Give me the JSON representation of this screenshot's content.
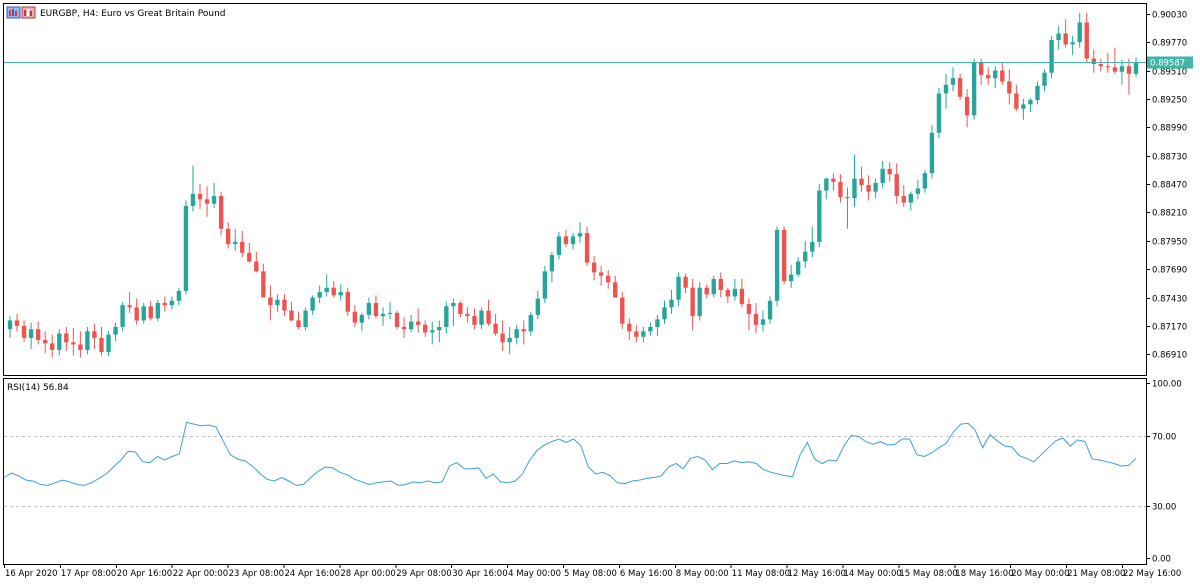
{
  "window": {
    "title": "EURGBP, H4:  Euro vs Great Britain Pound",
    "icon": "chart-window-icon"
  },
  "colors": {
    "bull": "#26a69a",
    "bear": "#ef5350",
    "price_line": "#3fb6a8",
    "rsi": "#3a9ee4",
    "price_label_bg": "#3fb6a8"
  },
  "price_label": "0.89587",
  "rsi_title": "RSI(14) 56.84",
  "chart_data": [
    {
      "type": "candlestick",
      "title": "EURGBP, H4:  Euro vs Great Britain Pound",
      "ylim": [
        0.8672,
        0.9012
      ],
      "yticks": [
        "0.90030",
        "0.89770",
        "0.89510",
        "0.89250",
        "0.88990",
        "0.88730",
        "0.88470",
        "0.88210",
        "0.87950",
        "0.87690",
        "0.87430",
        "0.87170",
        "0.86910"
      ],
      "current_price": 0.89587,
      "x_labels": [
        "16 Apr 2020",
        "17 Apr 08:00",
        "20 Apr 16:00",
        "22 Apr 00:00",
        "23 Apr 08:00",
        "24 Apr 16:00",
        "28 Apr 00:00",
        "29 Apr 08:00",
        "30 Apr 16:00",
        "4 May 00:00",
        "5 May 08:00",
        "6 May 16:00",
        "8 May 00:00",
        "11 May 08:00",
        "12 May 16:00",
        "14 May 00:00",
        "15 May 08:00",
        "18 May 16:00",
        "20 May 00:00",
        "21 May 08:00",
        "22 May 16:00"
      ],
      "ohlc": [
        [
          0.8714,
          0.8726,
          0.8706,
          0.8722
        ],
        [
          0.8722,
          0.8728,
          0.8712,
          0.8717
        ],
        [
          0.8717,
          0.8722,
          0.8702,
          0.8706
        ],
        [
          0.8706,
          0.872,
          0.8696,
          0.8714
        ],
        [
          0.8714,
          0.8721,
          0.87,
          0.8704
        ],
        [
          0.8704,
          0.8712,
          0.8692,
          0.8701
        ],
        [
          0.8701,
          0.8709,
          0.8688,
          0.8695
        ],
        [
          0.8695,
          0.8714,
          0.869,
          0.871
        ],
        [
          0.871,
          0.8716,
          0.8694,
          0.8702
        ],
        [
          0.8702,
          0.8715,
          0.869,
          0.87
        ],
        [
          0.87,
          0.8712,
          0.8688,
          0.8695
        ],
        [
          0.8695,
          0.8716,
          0.8691,
          0.8712
        ],
        [
          0.8712,
          0.8719,
          0.8696,
          0.8706
        ],
        [
          0.8706,
          0.8716,
          0.869,
          0.8693
        ],
        [
          0.8693,
          0.8712,
          0.8689,
          0.8709
        ],
        [
          0.8709,
          0.872,
          0.8703,
          0.8716
        ],
        [
          0.8716,
          0.8739,
          0.8712,
          0.8736
        ],
        [
          0.8736,
          0.8748,
          0.8729,
          0.8734
        ],
        [
          0.8734,
          0.8742,
          0.8718,
          0.8722
        ],
        [
          0.8722,
          0.8738,
          0.8719,
          0.8735
        ],
        [
          0.8735,
          0.874,
          0.8722,
          0.8724
        ],
        [
          0.8724,
          0.8741,
          0.8721,
          0.8738
        ],
        [
          0.8738,
          0.8744,
          0.873,
          0.8736
        ],
        [
          0.8736,
          0.8744,
          0.8732,
          0.874
        ],
        [
          0.874,
          0.8752,
          0.8736,
          0.8749
        ],
        [
          0.8749,
          0.8832,
          0.8746,
          0.8827
        ],
        [
          0.8827,
          0.8864,
          0.8822,
          0.8838
        ],
        [
          0.8838,
          0.8847,
          0.8824,
          0.8833
        ],
        [
          0.8833,
          0.8845,
          0.8817,
          0.8829
        ],
        [
          0.8829,
          0.8848,
          0.8825,
          0.8836
        ],
        [
          0.8836,
          0.884,
          0.88,
          0.8806
        ],
        [
          0.8806,
          0.8812,
          0.8788,
          0.8792
        ],
        [
          0.8792,
          0.8806,
          0.8786,
          0.8794
        ],
        [
          0.8794,
          0.8804,
          0.878,
          0.8784
        ],
        [
          0.8784,
          0.8793,
          0.8775,
          0.8776
        ],
        [
          0.8776,
          0.8785,
          0.8766,
          0.8767
        ],
        [
          0.8767,
          0.8774,
          0.8744,
          0.8743
        ],
        [
          0.8743,
          0.8754,
          0.8722,
          0.8736
        ],
        [
          0.8736,
          0.8746,
          0.873,
          0.8741
        ],
        [
          0.8741,
          0.8746,
          0.8726,
          0.8731
        ],
        [
          0.8731,
          0.8739,
          0.8721,
          0.8722
        ],
        [
          0.8722,
          0.873,
          0.8714,
          0.8716
        ],
        [
          0.8716,
          0.8734,
          0.8713,
          0.8731
        ],
        [
          0.8731,
          0.8745,
          0.8727,
          0.8743
        ],
        [
          0.8743,
          0.8754,
          0.8738,
          0.8748
        ],
        [
          0.8748,
          0.8764,
          0.8744,
          0.8752
        ],
        [
          0.8752,
          0.8758,
          0.8743,
          0.8745
        ],
        [
          0.8745,
          0.8755,
          0.874,
          0.8748
        ],
        [
          0.8748,
          0.8752,
          0.8726,
          0.873
        ],
        [
          0.873,
          0.8736,
          0.8716,
          0.872
        ],
        [
          0.872,
          0.8729,
          0.8712,
          0.8727
        ],
        [
          0.8727,
          0.8743,
          0.8723,
          0.8738
        ],
        [
          0.8738,
          0.8745,
          0.8724,
          0.8726
        ],
        [
          0.8726,
          0.8734,
          0.8717,
          0.8728
        ],
        [
          0.8728,
          0.8739,
          0.8723,
          0.8729
        ],
        [
          0.8729,
          0.8731,
          0.8714,
          0.8716
        ],
        [
          0.8716,
          0.8725,
          0.8706,
          0.8714
        ],
        [
          0.8714,
          0.8727,
          0.8711,
          0.8721
        ],
        [
          0.8721,
          0.8733,
          0.8711,
          0.8718
        ],
        [
          0.8718,
          0.8722,
          0.8707,
          0.8711
        ],
        [
          0.8711,
          0.8721,
          0.87,
          0.8713
        ],
        [
          0.8713,
          0.8722,
          0.8702,
          0.8716
        ],
        [
          0.8716,
          0.8739,
          0.871,
          0.8735
        ],
        [
          0.8735,
          0.8742,
          0.8717,
          0.8738
        ],
        [
          0.8738,
          0.874,
          0.8725,
          0.8728
        ],
        [
          0.8728,
          0.8734,
          0.872,
          0.8726
        ],
        [
          0.8726,
          0.8733,
          0.8714,
          0.8718
        ],
        [
          0.8718,
          0.8734,
          0.8714,
          0.8731
        ],
        [
          0.8731,
          0.8741,
          0.8717,
          0.8719
        ],
        [
          0.8719,
          0.8728,
          0.8708,
          0.871
        ],
        [
          0.871,
          0.8722,
          0.8694,
          0.8702
        ],
        [
          0.8702,
          0.8716,
          0.8691,
          0.8706
        ],
        [
          0.8706,
          0.8718,
          0.87,
          0.8714
        ],
        [
          0.8714,
          0.8722,
          0.87,
          0.8712
        ],
        [
          0.8712,
          0.873,
          0.8708,
          0.8727
        ],
        [
          0.8727,
          0.8749,
          0.8723,
          0.8742
        ],
        [
          0.8742,
          0.8772,
          0.8738,
          0.8767
        ],
        [
          0.8767,
          0.8785,
          0.8757,
          0.8782
        ],
        [
          0.8782,
          0.8803,
          0.8778,
          0.8799
        ],
        [
          0.8799,
          0.8805,
          0.8789,
          0.8792
        ],
        [
          0.8792,
          0.8802,
          0.8787,
          0.8799
        ],
        [
          0.8799,
          0.8812,
          0.8793,
          0.8802
        ],
        [
          0.8802,
          0.8808,
          0.8772,
          0.8775
        ],
        [
          0.8775,
          0.8781,
          0.8759,
          0.8766
        ],
        [
          0.8766,
          0.8772,
          0.8754,
          0.8763
        ],
        [
          0.8763,
          0.8768,
          0.8751,
          0.8757
        ],
        [
          0.8757,
          0.8763,
          0.8744,
          0.8743
        ],
        [
          0.8743,
          0.8748,
          0.8714,
          0.8719
        ],
        [
          0.8719,
          0.8724,
          0.8704,
          0.8712
        ],
        [
          0.8712,
          0.8718,
          0.8702,
          0.8707
        ],
        [
          0.8707,
          0.8716,
          0.8702,
          0.8712
        ],
        [
          0.8712,
          0.872,
          0.8708,
          0.8716
        ],
        [
          0.8716,
          0.8727,
          0.8708,
          0.8723
        ],
        [
          0.8723,
          0.874,
          0.8719,
          0.8734
        ],
        [
          0.8734,
          0.875,
          0.8728,
          0.8741
        ],
        [
          0.8741,
          0.8766,
          0.8735,
          0.8762
        ],
        [
          0.8762,
          0.8765,
          0.8747,
          0.8752
        ],
        [
          0.8752,
          0.876,
          0.8713,
          0.8726
        ],
        [
          0.8726,
          0.8757,
          0.8722,
          0.8752
        ],
        [
          0.8752,
          0.8755,
          0.8742,
          0.8746
        ],
        [
          0.8746,
          0.8763,
          0.8743,
          0.876
        ],
        [
          0.876,
          0.8766,
          0.8743,
          0.875
        ],
        [
          0.875,
          0.8752,
          0.8738,
          0.8744
        ],
        [
          0.8744,
          0.876,
          0.874,
          0.8751
        ],
        [
          0.8751,
          0.876,
          0.8734,
          0.8737
        ],
        [
          0.8737,
          0.8742,
          0.8713,
          0.8728
        ],
        [
          0.8728,
          0.8738,
          0.871,
          0.8718
        ],
        [
          0.8718,
          0.8731,
          0.8712,
          0.8723
        ],
        [
          0.8723,
          0.8744,
          0.8719,
          0.874
        ],
        [
          0.874,
          0.8808,
          0.8735,
          0.8805
        ],
        [
          0.8805,
          0.8808,
          0.8755,
          0.8758
        ],
        [
          0.8758,
          0.8773,
          0.8752,
          0.8764
        ],
        [
          0.8764,
          0.878,
          0.8762,
          0.8776
        ],
        [
          0.8776,
          0.8795,
          0.877,
          0.8785
        ],
        [
          0.8785,
          0.8808,
          0.878,
          0.8794
        ],
        [
          0.8794,
          0.8847,
          0.8789,
          0.8841
        ],
        [
          0.8841,
          0.8853,
          0.8833,
          0.8852
        ],
        [
          0.8852,
          0.8857,
          0.8841,
          0.8849
        ],
        [
          0.8849,
          0.8856,
          0.883,
          0.8835
        ],
        [
          0.8835,
          0.8844,
          0.8806,
          0.8834
        ],
        [
          0.8834,
          0.8874,
          0.8826,
          0.8852
        ],
        [
          0.8852,
          0.8863,
          0.884,
          0.8846
        ],
        [
          0.8846,
          0.8855,
          0.8832,
          0.884
        ],
        [
          0.884,
          0.8852,
          0.8834,
          0.8848
        ],
        [
          0.8848,
          0.8868,
          0.8843,
          0.8861
        ],
        [
          0.8861,
          0.8867,
          0.8849,
          0.8856
        ],
        [
          0.8856,
          0.8866,
          0.8829,
          0.8836
        ],
        [
          0.8836,
          0.8846,
          0.8826,
          0.883
        ],
        [
          0.883,
          0.884,
          0.8823,
          0.8838
        ],
        [
          0.8838,
          0.8851,
          0.8833,
          0.8843
        ],
        [
          0.8843,
          0.886,
          0.8839,
          0.8857
        ],
        [
          0.8857,
          0.8901,
          0.8852,
          0.8894
        ],
        [
          0.8894,
          0.8935,
          0.8889,
          0.893
        ],
        [
          0.893,
          0.8948,
          0.8916,
          0.8938
        ],
        [
          0.8938,
          0.8954,
          0.8932,
          0.8944
        ],
        [
          0.8944,
          0.8948,
          0.8924,
          0.8927
        ],
        [
          0.8927,
          0.8934,
          0.8899,
          0.891
        ],
        [
          0.891,
          0.8962,
          0.8906,
          0.8958
        ],
        [
          0.8958,
          0.8962,
          0.8938,
          0.8947
        ],
        [
          0.8947,
          0.8954,
          0.8938,
          0.8944
        ],
        [
          0.8944,
          0.8955,
          0.8935,
          0.8951
        ],
        [
          0.8951,
          0.8958,
          0.8938,
          0.8941
        ],
        [
          0.8941,
          0.8952,
          0.892,
          0.893
        ],
        [
          0.893,
          0.8938,
          0.8914,
          0.8916
        ],
        [
          0.8916,
          0.8925,
          0.8906,
          0.892
        ],
        [
          0.892,
          0.8926,
          0.8913,
          0.8924
        ],
        [
          0.8924,
          0.8941,
          0.892,
          0.8937
        ],
        [
          0.8937,
          0.8952,
          0.8932,
          0.8949
        ],
        [
          0.8949,
          0.8983,
          0.8944,
          0.8979
        ],
        [
          0.8979,
          0.8992,
          0.897,
          0.8985
        ],
        [
          0.8985,
          0.8998,
          0.8972,
          0.8975
        ],
        [
          0.8975,
          0.8983,
          0.8965,
          0.8977
        ],
        [
          0.8977,
          0.9004,
          0.8972,
          0.8995
        ],
        [
          0.8995,
          0.9004,
          0.8958,
          0.8962
        ],
        [
          0.8962,
          0.897,
          0.8949,
          0.8957
        ],
        [
          0.8957,
          0.8962,
          0.895,
          0.8955
        ],
        [
          0.8955,
          0.8967,
          0.8949,
          0.8954
        ],
        [
          0.8954,
          0.8972,
          0.8948,
          0.895
        ],
        [
          0.895,
          0.8961,
          0.8938,
          0.8955
        ],
        [
          0.8955,
          0.8962,
          0.8929,
          0.8948
        ],
        [
          0.8948,
          0.8963,
          0.8945,
          0.8958
        ]
      ]
    },
    {
      "type": "line",
      "title": "RSI(14) 56.84",
      "ylim": [
        0,
        100
      ],
      "yticks": [
        "100.00",
        "70.00",
        "30.00",
        "0.00"
      ],
      "levels": [
        70,
        30
      ],
      "series": [
        {
          "name": "RSI(14)",
          "values": [
            46.0,
            48.5,
            47.0,
            44.5,
            44.0,
            42.0,
            41.5,
            43.0,
            44.5,
            43.5,
            42.0,
            41.5,
            43.0,
            45.5,
            48.0,
            52.0,
            56.0,
            61.0,
            60.5,
            55.0,
            54.5,
            58.0,
            56.0,
            58.0,
            59.5,
            77.5,
            76.5,
            75.5,
            76.0,
            75.0,
            67.0,
            59.0,
            56.5,
            55.5,
            52.5,
            48.5,
            45.0,
            44.0,
            46.0,
            44.0,
            41.5,
            42.0,
            46.0,
            49.5,
            52.0,
            51.5,
            49.0,
            47.5,
            45.0,
            43.5,
            42.0,
            43.0,
            43.5,
            44.0,
            41.5,
            42.0,
            43.5,
            43.0,
            44.0,
            43.0,
            43.5,
            52.5,
            54.5,
            51.0,
            51.0,
            51.5,
            45.5,
            48.0,
            43.5,
            43.0,
            44.0,
            48.0,
            56.0,
            61.5,
            64.5,
            66.5,
            68.0,
            66.0,
            68.0,
            64.0,
            52.0,
            48.0,
            49.0,
            47.0,
            43.0,
            42.5,
            44.0,
            44.5,
            45.5,
            46.0,
            47.0,
            52.0,
            54.0,
            51.0,
            57.0,
            58.0,
            56.0,
            50.5,
            54.0,
            54.0,
            55.5,
            54.5,
            55.0,
            54.0,
            50.5,
            49.0,
            48.0,
            47.0,
            46.5,
            59.0,
            66.0,
            56.5,
            54.0,
            56.0,
            55.5,
            64.0,
            70.0,
            69.5,
            66.5,
            65.0,
            66.5,
            64.5,
            65.0,
            68.0,
            68.0,
            59.0,
            58.0,
            60.0,
            63.0,
            65.5,
            72.0,
            76.5,
            77.0,
            73.0,
            63.0,
            70.5,
            67.0,
            64.0,
            63.5,
            58.5,
            57.0,
            55.0,
            59.0,
            63.0,
            67.0,
            68.5,
            64.0,
            67.5,
            66.5,
            56.5,
            56.0,
            55.0,
            54.0,
            52.5,
            53.0,
            57.0
          ]
        }
      ]
    }
  ]
}
